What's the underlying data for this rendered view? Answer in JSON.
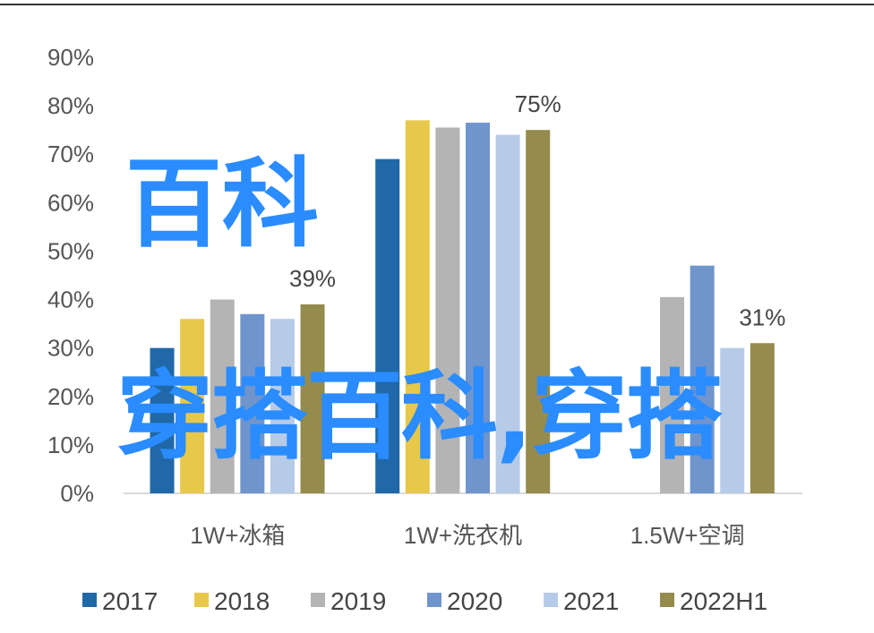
{
  "chart_data": {
    "type": "bar",
    "categories": [
      "1W+冰箱",
      "1W+洗衣机",
      "1.5W+空调"
    ],
    "series": [
      {
        "name": "2017",
        "color": "#2068a8",
        "values": [
          30,
          69,
          null
        ]
      },
      {
        "name": "2018",
        "color": "#e8c84a",
        "values": [
          36,
          77,
          null
        ]
      },
      {
        "name": "2019",
        "color": "#b4b4b4",
        "values": [
          40,
          75.5,
          40.5
        ]
      },
      {
        "name": "2020",
        "color": "#6f95cc",
        "values": [
          37,
          76.5,
          47
        ]
      },
      {
        "name": "2021",
        "color": "#b6cbe8",
        "values": [
          36,
          74,
          30
        ]
      },
      {
        "name": "2022H1",
        "color": "#948b4c",
        "values": [
          39,
          75,
          31
        ]
      }
    ],
    "data_labels": [
      {
        "series": "2022H1",
        "category": 0,
        "text": "39%"
      },
      {
        "series": "2022H1",
        "category": 1,
        "text": "75%"
      },
      {
        "series": "2022H1",
        "category": 2,
        "text": "31%"
      }
    ],
    "ylim": [
      0,
      90
    ],
    "yticks": [
      "0%",
      "10%",
      "20%",
      "30%",
      "40%",
      "50%",
      "60%",
      "70%",
      "80%",
      "90%"
    ],
    "legend": "bottom",
    "grid": false
  },
  "watermark": {
    "line1": "穿搭百科,穿搭",
    "line2": "百科"
  }
}
